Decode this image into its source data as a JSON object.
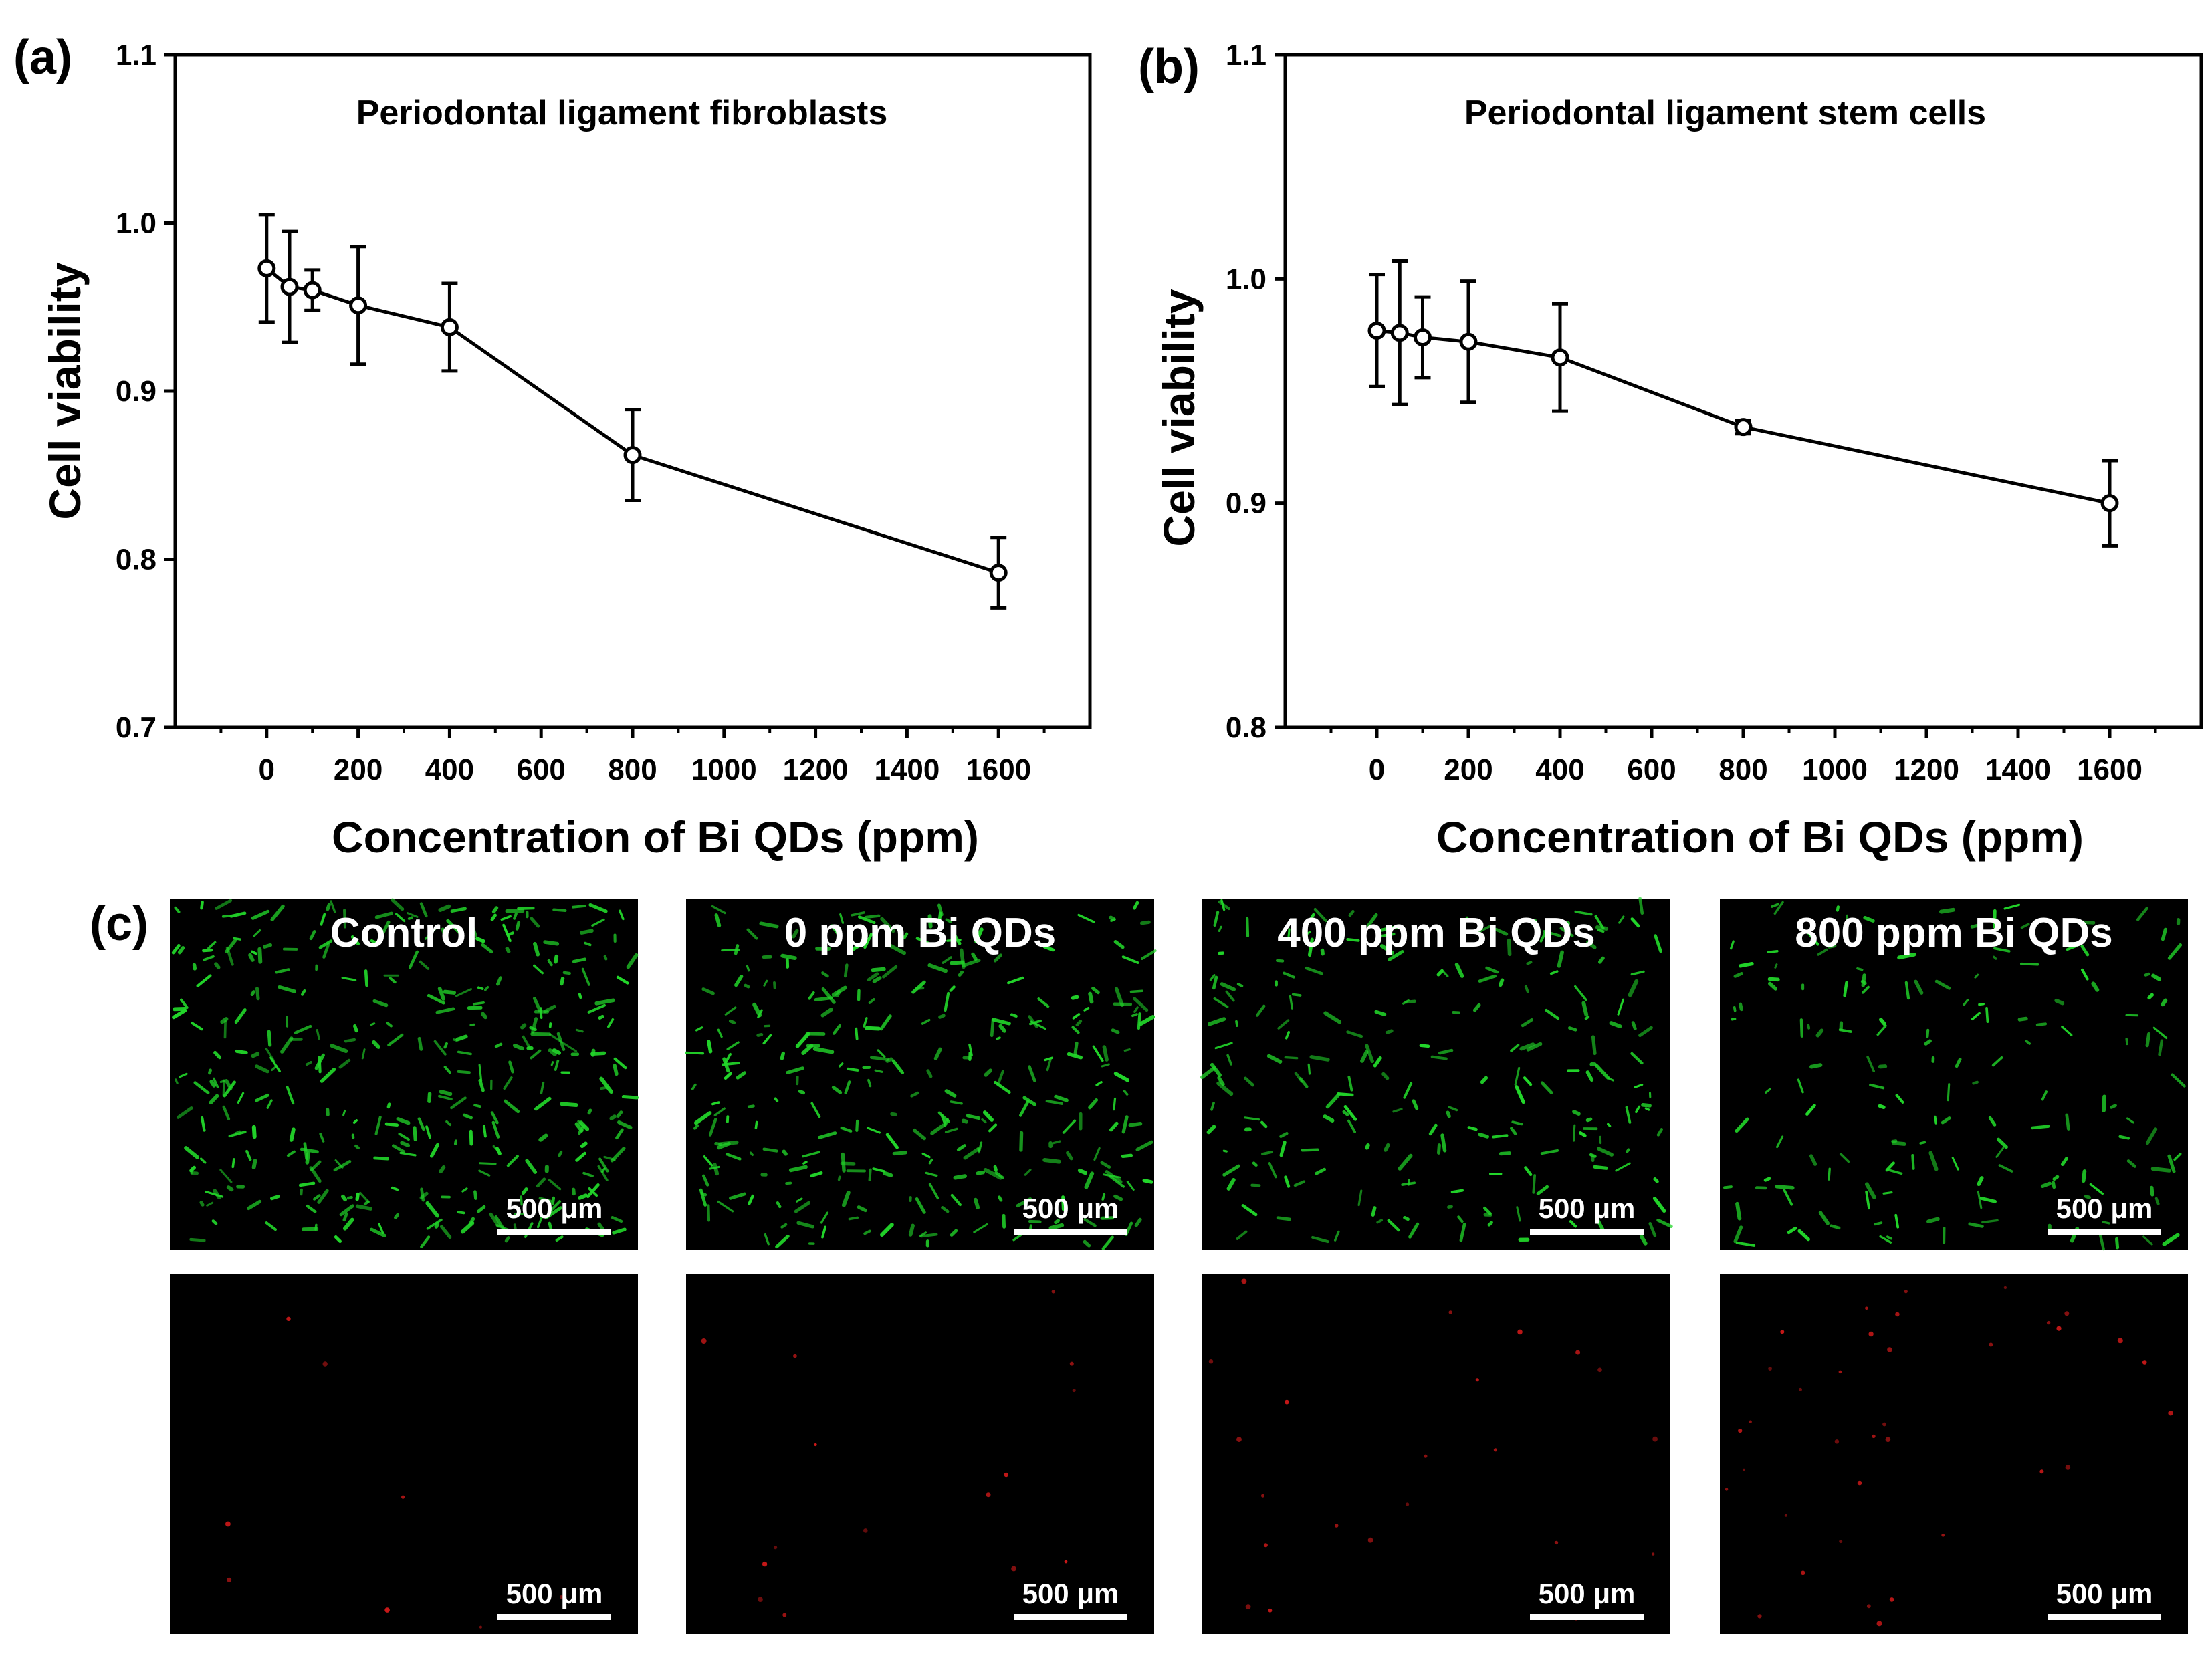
{
  "chart_data": [
    {
      "panel": "(a)",
      "type": "line",
      "title": "Periodontal ligament fibroblasts",
      "xlabel": "Concentration of Bi QDs (ppm)",
      "ylabel": "Cell viability",
      "xlim": [
        -200,
        1800
      ],
      "ylim": [
        0.7,
        1.1
      ],
      "x_ticks": [
        0,
        200,
        400,
        600,
        800,
        1000,
        1200,
        1400,
        1600
      ],
      "x_tick_labels": [
        "0",
        "200",
        "400",
        "600",
        "800",
        "1000",
        "1200",
        "1400",
        "1600"
      ],
      "y_ticks": [
        0.7,
        0.8,
        0.9,
        1.0,
        1.1
      ],
      "y_tick_labels": [
        "0.7",
        "0.8",
        "0.9",
        "1.0",
        "1.1"
      ],
      "series": [
        {
          "name": "Cell viability",
          "x": [
            0,
            50,
            100,
            200,
            400,
            800,
            1600
          ],
          "y": [
            0.973,
            0.962,
            0.96,
            0.951,
            0.938,
            0.862,
            0.792
          ],
          "err": [
            0.032,
            0.033,
            0.012,
            0.035,
            0.026,
            0.027,
            0.021
          ]
        }
      ]
    },
    {
      "panel": "(b)",
      "type": "line",
      "title": "Periodontal ligament stem cells",
      "xlabel": "Concentration of Bi QDs (ppm)",
      "ylabel": "Cell viability",
      "xlim": [
        -200,
        1800
      ],
      "ylim": [
        0.8,
        1.1
      ],
      "x_ticks": [
        0,
        200,
        400,
        600,
        800,
        1000,
        1200,
        1400,
        1600
      ],
      "x_tick_labels": [
        "0",
        "200",
        "400",
        "600",
        "800",
        "1000",
        "1200",
        "1400",
        "1600"
      ],
      "y_ticks": [
        0.8,
        0.9,
        1.0,
        1.1
      ],
      "y_tick_labels": [
        "0.8",
        "0.9",
        "1.0",
        "1.1"
      ],
      "series": [
        {
          "name": "Cell viability",
          "x": [
            0,
            50,
            100,
            200,
            400,
            800,
            1600
          ],
          "y": [
            0.977,
            0.976,
            0.974,
            0.972,
            0.965,
            0.934,
            0.9
          ],
          "err": [
            0.025,
            0.032,
            0.018,
            0.027,
            0.024,
            0.003,
            0.019
          ]
        }
      ]
    }
  ],
  "panel_c": {
    "letter": "(c)",
    "columns": [
      "Control",
      "0 ppm Bi QDs",
      "400 ppm Bi QDs",
      "800 ppm Bi QDs"
    ],
    "scale_bar": "500 μm",
    "colors": {
      "live": "#22d62a",
      "dead": "#d81a1a",
      "background": "#000000"
    },
    "live_density": [
      1.0,
      0.85,
      0.6,
      0.45
    ],
    "dead_density": [
      0.2,
      0.4,
      0.55,
      0.9
    ]
  }
}
